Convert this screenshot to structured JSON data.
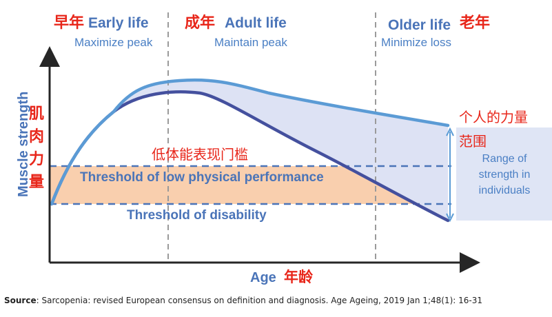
{
  "phases": {
    "early": {
      "zh": "早年",
      "en": "Early life",
      "sub": "Maximize peak"
    },
    "adult": {
      "zh": "成年",
      "en": "Adult life",
      "sub": "Maintain peak"
    },
    "older": {
      "en": "Older life",
      "zh": "老年",
      "sub": "Minimize loss"
    }
  },
  "axes": {
    "y_label_en": "Muscle strength",
    "y_label_zh": [
      "肌",
      "肉",
      "力",
      "量"
    ],
    "x_label_en": "Age",
    "x_label_zh": "年龄"
  },
  "thresholds": {
    "low_performance_zh": "低体能表现门槛",
    "low_performance_en": "Threshold of low physical performance",
    "disability_en": "Threshold of disability"
  },
  "range": {
    "zh_line1": "个人的力量",
    "zh_line2": "范围",
    "en": [
      "Range of",
      "strength in",
      "individuals"
    ]
  },
  "source": {
    "label": "Source",
    "text": ": Sarcopenia: revised European consensus on definition and diagnosis. Age Ageing, 2019 Jan 1;48(1): 16-31"
  },
  "colors": {
    "red": "#e8261a",
    "blue_title": "#4a74b8",
    "blue_sub": "#4a7fc4",
    "upper_curve": "#5b9bd5",
    "lower_curve": "#44509e",
    "shaded_area": "#dde2f4",
    "threshold_band": "#f9cfae",
    "range_box": "#dfe5f5",
    "axis": "#262626",
    "divider": "#9a9a9a"
  }
}
